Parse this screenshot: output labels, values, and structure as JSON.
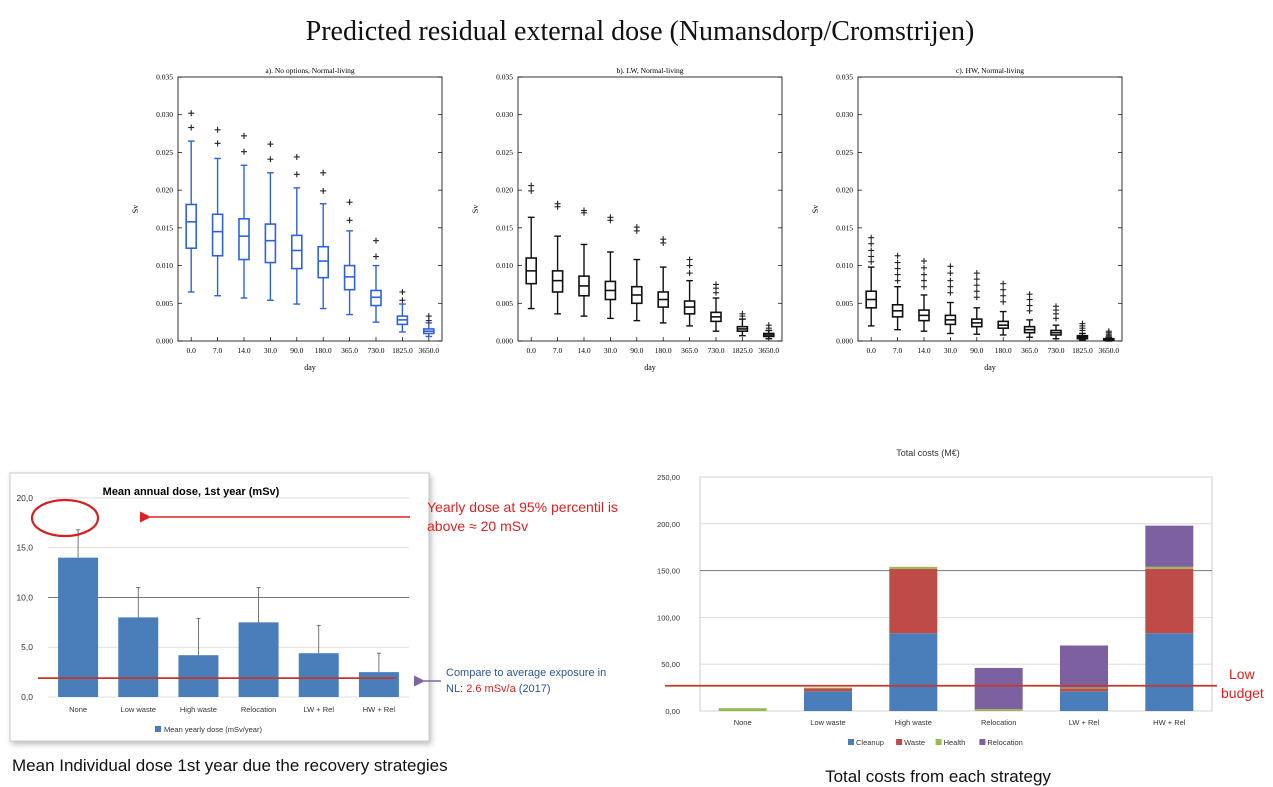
{
  "main_title": "Predicted residual external dose (Numansdorp/Cromstrijen)",
  "box_panels": {
    "ylabel": "Sv",
    "xlabel": "day",
    "ylim": [
      0,
      0.035
    ],
    "yticks": [
      "0.000",
      "0.005",
      "0.010",
      "0.015",
      "0.020",
      "0.025",
      "0.030",
      "0.035"
    ],
    "xticks": [
      "0.0",
      "7.0",
      "14.0",
      "30.0",
      "90.0",
      "180.0",
      "365.0",
      "730.0",
      "1825.0",
      "3650.0"
    ],
    "panels": [
      {
        "title": "a). No options, Normal-living",
        "color": "#2f62d8",
        "boxes": [
          {
            "wlo": 0.0065,
            "q1": 0.0123,
            "med": 0.0158,
            "q3": 0.0181,
            "whi": 0.0265,
            "out": [
              0.0283,
              0.0302
            ]
          },
          {
            "wlo": 0.006,
            "q1": 0.0113,
            "med": 0.0145,
            "q3": 0.0168,
            "whi": 0.0242,
            "out": [
              0.0262,
              0.028
            ]
          },
          {
            "wlo": 0.0057,
            "q1": 0.0108,
            "med": 0.0139,
            "q3": 0.0162,
            "whi": 0.0233,
            "out": [
              0.0251,
              0.0272
            ]
          },
          {
            "wlo": 0.0054,
            "q1": 0.0104,
            "med": 0.0133,
            "q3": 0.0155,
            "whi": 0.0223,
            "out": [
              0.0241,
              0.0261
            ]
          },
          {
            "wlo": 0.0049,
            "q1": 0.0096,
            "med": 0.012,
            "q3": 0.014,
            "whi": 0.0203,
            "out": [
              0.0221,
              0.0244
            ]
          },
          {
            "wlo": 0.0043,
            "q1": 0.0084,
            "med": 0.0106,
            "q3": 0.0125,
            "whi": 0.0182,
            "out": [
              0.0199,
              0.0223
            ]
          },
          {
            "wlo": 0.0035,
            "q1": 0.0068,
            "med": 0.0085,
            "q3": 0.01,
            "whi": 0.0146,
            "out": [
              0.016,
              0.0184
            ]
          },
          {
            "wlo": 0.0025,
            "q1": 0.0047,
            "med": 0.0058,
            "q3": 0.0067,
            "whi": 0.01,
            "out": [
              0.0112,
              0.0133
            ]
          },
          {
            "wlo": 0.0012,
            "q1": 0.0022,
            "med": 0.0028,
            "q3": 0.0033,
            "whi": 0.0049,
            "out": [
              0.0054,
              0.0065
            ]
          },
          {
            "wlo": 0.0006,
            "q1": 0.001,
            "med": 0.0013,
            "q3": 0.0016,
            "whi": 0.0024,
            "out": [
              0.0027,
              0.0033
            ]
          }
        ]
      },
      {
        "title": "b). LW, Normal-living",
        "color": "#111111",
        "boxes": [
          {
            "wlo": 0.0043,
            "q1": 0.0076,
            "med": 0.0093,
            "q3": 0.011,
            "whi": 0.0164,
            "out": [
              0.0199,
              0.0206
            ]
          },
          {
            "wlo": 0.0036,
            "q1": 0.0065,
            "med": 0.008,
            "q3": 0.0093,
            "whi": 0.0139,
            "out": [
              0.0178,
              0.0182
            ]
          },
          {
            "wlo": 0.0033,
            "q1": 0.006,
            "med": 0.0073,
            "q3": 0.0086,
            "whi": 0.0128,
            "out": [
              0.017,
              0.0173
            ]
          },
          {
            "wlo": 0.003,
            "q1": 0.0055,
            "med": 0.0067,
            "q3": 0.0079,
            "whi": 0.0118,
            "out": [
              0.016,
              0.0164
            ]
          },
          {
            "wlo": 0.0027,
            "q1": 0.005,
            "med": 0.0061,
            "q3": 0.0072,
            "whi": 0.0108,
            "out": [
              0.0146,
              0.0151
            ]
          },
          {
            "wlo": 0.0024,
            "q1": 0.0045,
            "med": 0.0055,
            "q3": 0.0065,
            "whi": 0.0098,
            "out": [
              0.013,
              0.0135
            ]
          },
          {
            "wlo": 0.002,
            "q1": 0.0036,
            "med": 0.0045,
            "q3": 0.0053,
            "whi": 0.008,
            "out": [
              0.009,
              0.01,
              0.0108
            ]
          },
          {
            "wlo": 0.0013,
            "q1": 0.0026,
            "med": 0.0032,
            "q3": 0.0038,
            "whi": 0.0057,
            "out": [
              0.0064,
              0.007,
              0.0075
            ]
          },
          {
            "wlo": 0.0007,
            "q1": 0.0013,
            "med": 0.0016,
            "q3": 0.0019,
            "whi": 0.0029,
            "out": [
              0.0033,
              0.0036
            ]
          },
          {
            "wlo": 0.0003,
            "q1": 0.0006,
            "med": 0.0008,
            "q3": 0.001,
            "whi": 0.0014,
            "out": [
              0.0017,
              0.0021
            ]
          }
        ]
      },
      {
        "title": "c). HW, Normal-living",
        "color": "#111111",
        "boxes": [
          {
            "wlo": 0.002,
            "q1": 0.0044,
            "med": 0.0055,
            "q3": 0.0066,
            "whi": 0.0098,
            "out": [
              0.0105,
              0.0112,
              0.012,
              0.0129,
              0.0137
            ]
          },
          {
            "wlo": 0.0015,
            "q1": 0.0032,
            "med": 0.004,
            "q3": 0.0048,
            "whi": 0.0072,
            "out": [
              0.008,
              0.0088,
              0.0096,
              0.0104,
              0.0113
            ]
          },
          {
            "wlo": 0.0013,
            "q1": 0.0027,
            "med": 0.0034,
            "q3": 0.0041,
            "whi": 0.0061,
            "out": [
              0.0072,
              0.008,
              0.0088,
              0.0097,
              0.0106
            ]
          },
          {
            "wlo": 0.001,
            "q1": 0.0022,
            "med": 0.0028,
            "q3": 0.0034,
            "whi": 0.0051,
            "out": [
              0.0064,
              0.0072,
              0.008,
              0.009,
              0.0099
            ]
          },
          {
            "wlo": 0.0009,
            "q1": 0.0019,
            "med": 0.0024,
            "q3": 0.0029,
            "whi": 0.0044,
            "out": [
              0.0058,
              0.0066,
              0.0074,
              0.0082,
              0.009
            ]
          },
          {
            "wlo": 0.0008,
            "q1": 0.0017,
            "med": 0.0021,
            "q3": 0.0026,
            "whi": 0.0039,
            "out": [
              0.0052,
              0.006,
              0.0068,
              0.0076
            ]
          },
          {
            "wlo": 0.0005,
            "q1": 0.0011,
            "med": 0.0015,
            "q3": 0.0019,
            "whi": 0.0028,
            "out": [
              0.004,
              0.0047,
              0.0055,
              0.0062
            ]
          },
          {
            "wlo": 0.0003,
            "q1": 0.0008,
            "med": 0.0011,
            "q3": 0.0014,
            "whi": 0.0021,
            "out": [
              0.003,
              0.0036,
              0.0041,
              0.0046
            ]
          },
          {
            "wlo": 0.0001,
            "q1": 0.0003,
            "med": 0.0005,
            "q3": 0.0007,
            "whi": 0.001,
            "out": [
              0.0014,
              0.0017,
              0.002,
              0.0023
            ]
          },
          {
            "wlo": 0.0,
            "q1": 0.0001,
            "med": 0.0002,
            "q3": 0.0003,
            "whi": 0.0005,
            "out": [
              0.0007,
              0.0009,
              0.0011,
              0.0013
            ]
          }
        ]
      }
    ]
  },
  "chart_data": [
    {
      "type": "bar",
      "title": "Mean annual dose, 1st year (mSv)",
      "categories": [
        "None",
        "Low waste",
        "High waste",
        "Relocation",
        "LW + Rel",
        "HW + Rel"
      ],
      "series": [
        {
          "name": "Mean yearly dose (mSv/year)",
          "values": [
            14.0,
            8.0,
            4.2,
            7.5,
            4.4,
            2.5
          ],
          "color": "#4a7ebb"
        }
      ],
      "error_upper": [
        16.8,
        11.0,
        7.9,
        11.0,
        7.2,
        4.4
      ],
      "ylim": [
        0,
        21
      ],
      "yticks": [
        "0,0",
        "5,0",
        "10,0",
        "15,0",
        "20,0"
      ],
      "legend": "bottom",
      "reference_line_value": 1.9,
      "reference_line_color": "#c0392b",
      "highlight_value": 20.0
    },
    {
      "type": "bar",
      "stacked": true,
      "title": "Total costs (M€)",
      "categories": [
        "None",
        "Low waste",
        "High waste",
        "Relocation",
        "LW + Rel",
        "HW + Rel"
      ],
      "series": [
        {
          "name": "Cleanup",
          "values": [
            0,
            21,
            83,
            0,
            21,
            83
          ],
          "color": "#4a7ebb"
        },
        {
          "name": "Waste",
          "values": [
            0,
            3,
            69,
            0,
            3,
            69
          ],
          "color": "#be4b48"
        },
        {
          "name": "Health",
          "values": [
            3,
            1,
            2,
            2,
            1,
            2
          ],
          "color": "#98b954"
        },
        {
          "name": "Relocation",
          "values": [
            0,
            0,
            0,
            44,
            45,
            44
          ],
          "color": "#7d60a0"
        }
      ],
      "ylim": [
        0,
        250
      ],
      "yticks": [
        "0,00",
        "50,00",
        "100,00",
        "150,00",
        "200,00",
        "250,00"
      ],
      "legend": "bottom",
      "reference_line_value": 27,
      "reference_line_color": "#c0392b"
    }
  ],
  "annotations": {
    "percentile_note_line1": "Yearly dose at 95% percentil is",
    "percentile_note_line2": "above ≈ 20 mSv",
    "compare_note_line1": "Compare to average exposure in",
    "compare_note_prefix": "NL: ",
    "compare_note_value": "2.6 mSv/a",
    "compare_note_suffix": " (2017)",
    "low_budget_line1": "Low",
    "low_budget_line2": "budget",
    "caption_left": "Mean Individual dose 1st year due the recovery strategies",
    "caption_right": "Total costs from each strategy"
  },
  "colors": {
    "red_text": "#e02020",
    "blue_text": "#2e5597",
    "arrow_purple": "#8064a2"
  }
}
